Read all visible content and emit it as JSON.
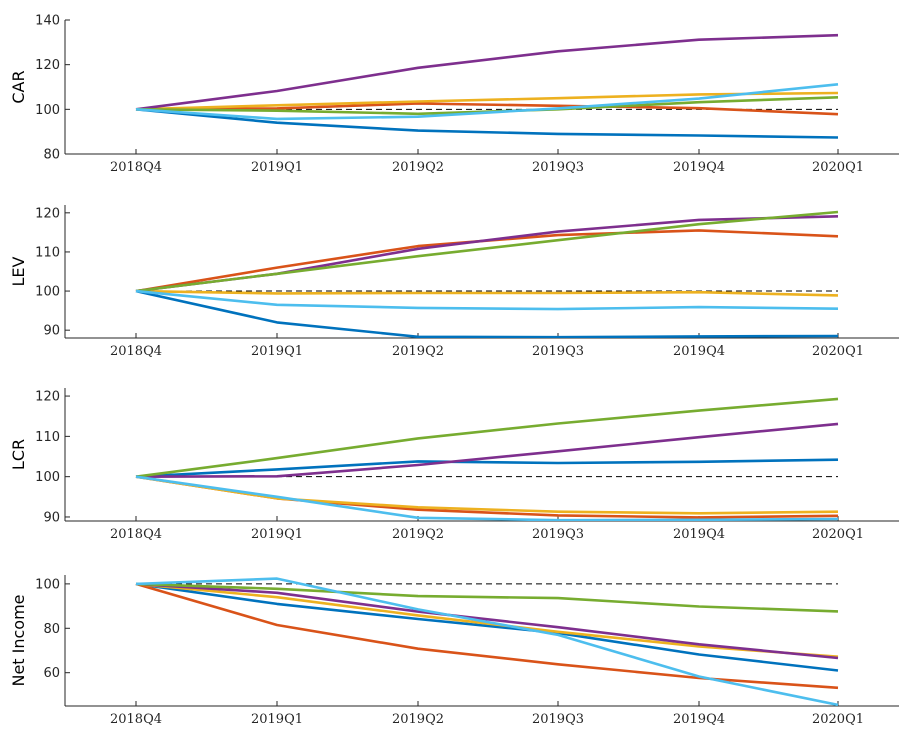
{
  "chart_data": [
    {
      "type": "line",
      "ylabel": "CAR",
      "categories": [
        "2018Q4",
        "2019Q1",
        "2019Q2",
        "2019Q3",
        "2019Q4",
        "2020Q1"
      ],
      "ylim": [
        80,
        140
      ],
      "yticks": [
        80,
        100,
        120,
        140
      ],
      "reference_line": 100,
      "series": [
        {
          "color": "#0072BD",
          "values": [
            100,
            94.0,
            90.5,
            89.0,
            88.3,
            87.4
          ]
        },
        {
          "color": "#D95319",
          "values": [
            100,
            100.4,
            102.6,
            101.6,
            100.5,
            97.8
          ]
        },
        {
          "color": "#EDB120",
          "values": [
            100,
            101.8,
            103.5,
            105.0,
            106.7,
            107.3
          ]
        },
        {
          "color": "#7E2F8E",
          "values": [
            100,
            108.2,
            118.6,
            126.0,
            131.2,
            133.2
          ]
        },
        {
          "color": "#77AC30",
          "values": [
            100,
            99.4,
            98.0,
            100.0,
            103.2,
            105.4
          ]
        },
        {
          "color": "#4DBEEE",
          "values": [
            100,
            95.7,
            96.7,
            100.4,
            104.8,
            111.2
          ]
        }
      ]
    },
    {
      "type": "line",
      "ylabel": "LEV",
      "categories": [
        "2018Q4",
        "2019Q1",
        "2019Q2",
        "2019Q3",
        "2019Q4",
        "2020Q1"
      ],
      "ylim": [
        88,
        122
      ],
      "yticks": [
        90,
        100,
        110,
        120
      ],
      "reference_line": 100,
      "series": [
        {
          "color": "#0072BD",
          "values": [
            100,
            92.0,
            88.3,
            88.2,
            88.4,
            88.5
          ]
        },
        {
          "color": "#D95319",
          "values": [
            100,
            106.0,
            111.5,
            114.3,
            115.5,
            114.0
          ]
        },
        {
          "color": "#EDB120",
          "values": [
            100,
            99.4,
            99.5,
            99.5,
            99.7,
            98.9
          ]
        },
        {
          "color": "#7E2F8E",
          "values": [
            100,
            104.4,
            110.8,
            115.2,
            118.2,
            119.1
          ]
        },
        {
          "color": "#77AC30",
          "values": [
            100,
            104.4,
            108.9,
            113.0,
            117.1,
            120.2
          ]
        },
        {
          "color": "#4DBEEE",
          "values": [
            100,
            96.5,
            95.7,
            95.4,
            95.9,
            95.5
          ]
        }
      ]
    },
    {
      "type": "line",
      "ylabel": "LCR",
      "categories": [
        "2018Q4",
        "2019Q1",
        "2019Q2",
        "2019Q3",
        "2019Q4",
        "2020Q1"
      ],
      "ylim": [
        89,
        122
      ],
      "yticks": [
        90,
        100,
        110,
        120
      ],
      "reference_line": 100,
      "series": [
        {
          "color": "#0072BD",
          "values": [
            100,
            101.8,
            103.8,
            103.4,
            103.7,
            104.2
          ]
        },
        {
          "color": "#D95319",
          "values": [
            100,
            94.6,
            91.8,
            90.4,
            89.9,
            90.3
          ]
        },
        {
          "color": "#EDB120",
          "values": [
            100,
            94.6,
            92.4,
            91.3,
            90.9,
            91.3
          ]
        },
        {
          "color": "#7E2F8E",
          "values": [
            100,
            100.1,
            102.9,
            106.3,
            109.8,
            113.1
          ]
        },
        {
          "color": "#77AC30",
          "values": [
            100,
            104.6,
            109.5,
            113.2,
            116.4,
            119.3
          ]
        },
        {
          "color": "#4DBEEE",
          "values": [
            100,
            95.0,
            89.8,
            89.2,
            89.3,
            89.5
          ]
        }
      ]
    },
    {
      "type": "line",
      "ylabel": "Net Income",
      "categories": [
        "2018Q4",
        "2019Q1",
        "2019Q2",
        "2019Q3",
        "2019Q4",
        "2020Q1"
      ],
      "ylim": [
        45,
        104
      ],
      "yticks": [
        60,
        80,
        100
      ],
      "reference_line": 100,
      "series": [
        {
          "color": "#0072BD",
          "values": [
            100,
            91.0,
            84.2,
            77.9,
            68.2,
            61.0
          ]
        },
        {
          "color": "#D95319",
          "values": [
            100,
            81.5,
            70.8,
            63.8,
            57.6,
            53.2
          ]
        },
        {
          "color": "#EDB120",
          "values": [
            100,
            94.0,
            85.8,
            78.4,
            71.8,
            67.2
          ]
        },
        {
          "color": "#7E2F8E",
          "values": [
            100,
            96.0,
            87.5,
            80.5,
            72.8,
            66.6
          ]
        },
        {
          "color": "#77AC30",
          "values": [
            100,
            97.8,
            94.5,
            93.6,
            89.8,
            87.6
          ]
        },
        {
          "color": "#4DBEEE",
          "values": [
            100,
            102.4,
            88.5,
            77.0,
            58.3,
            45.5
          ]
        }
      ]
    }
  ]
}
